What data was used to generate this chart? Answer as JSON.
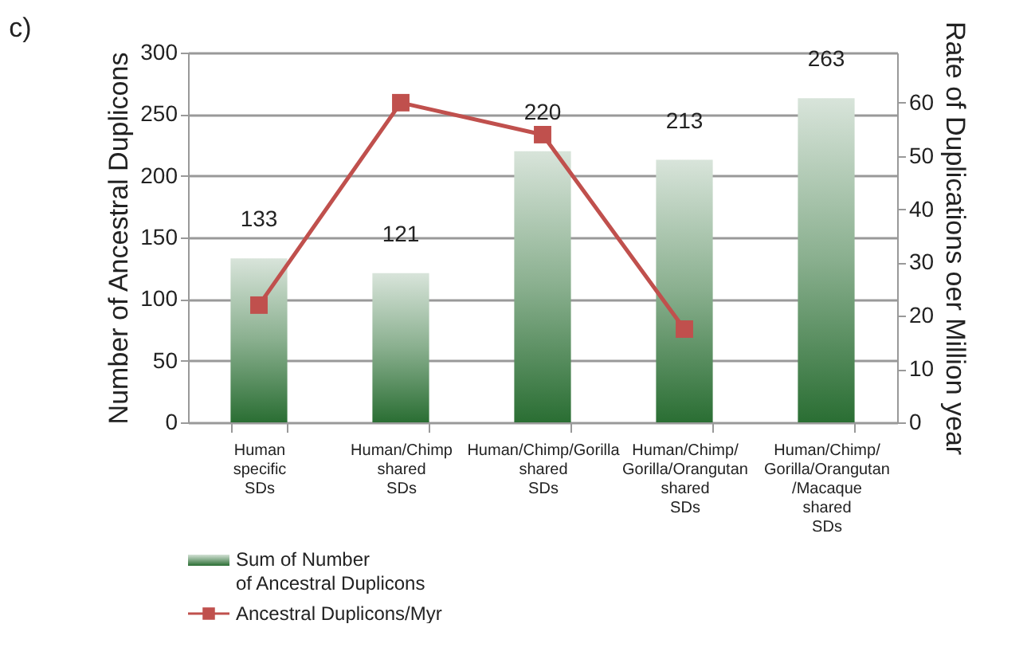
{
  "chart_data": {
    "type": "bar",
    "title": "c)",
    "categories": [
      "Human\nspecific\nSDs",
      "Human/Chimp\nshared\nSDs",
      "Human/Chimp/Gorilla\nshared\nSDs",
      "Human/Chimp/\nGorilla/Orangutan\nshared\nSDs",
      "Human/Chimp/\nGorilla/Orangutan\n/Macaque\nshared\nSDs"
    ],
    "series": [
      {
        "name": "Sum of Number\nof Ancestral Duplicons",
        "color": "#2a6e33",
        "values": [
          133,
          121,
          220,
          213,
          263
        ],
        "value_labels": [
          "133",
          "121",
          "220",
          "213",
          "263"
        ]
      },
      {
        "name": "Ancestral Duplicons/Myr",
        "type": "line",
        "axis": "y2",
        "color": "#c0504d",
        "values": [
          22,
          60,
          54,
          17.5,
          null
        ]
      }
    ],
    "ylabel": "Number of Ancestral Duplicons",
    "y2label": "Rate of Duplications oer Million year",
    "ylim": [
      0,
      300
    ],
    "yticks": [
      0,
      50,
      100,
      150,
      200,
      250,
      300
    ],
    "y2lim": [
      0,
      69.4
    ],
    "y2ticks": [
      0,
      10,
      20,
      30,
      40,
      50,
      60
    ],
    "grid": "y",
    "legend": "bottom left",
    "marker": "square",
    "line_style": "solid"
  }
}
